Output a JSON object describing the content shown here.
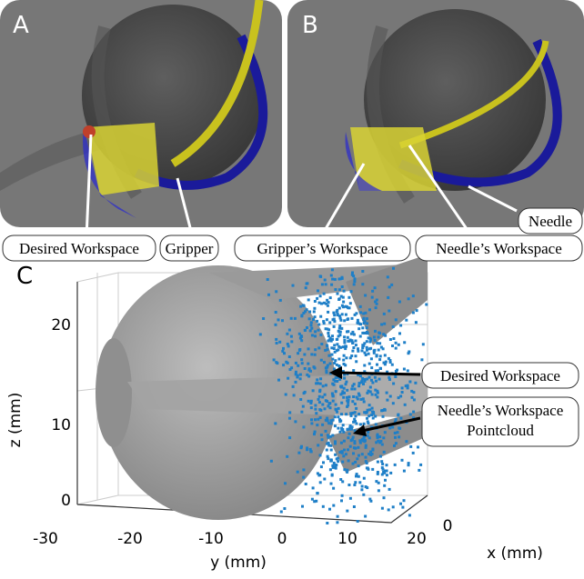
{
  "panels": [
    {
      "label": "A",
      "annotations": [
        "Desired Workspace",
        "Gripper"
      ]
    },
    {
      "label": "B",
      "annotations": [
        "Gripper’s Workspace",
        "Needle’s Workspace",
        "Needle"
      ]
    },
    {
      "label": "C",
      "z_label": "z (mm)",
      "y_label": "y (mm)",
      "x_label": "x (mm)",
      "z_ticks": [
        0,
        10,
        20
      ],
      "y_ticks": [
        -30,
        -20,
        -10,
        0,
        10,
        20
      ],
      "x_ticks": [
        0
      ],
      "annotations": [
        {
          "lines": [
            "Desired Workspace"
          ]
        },
        {
          "lines": [
            "Needle’s Workspace",
            "Pointcloud"
          ]
        }
      ]
    }
  ]
}
